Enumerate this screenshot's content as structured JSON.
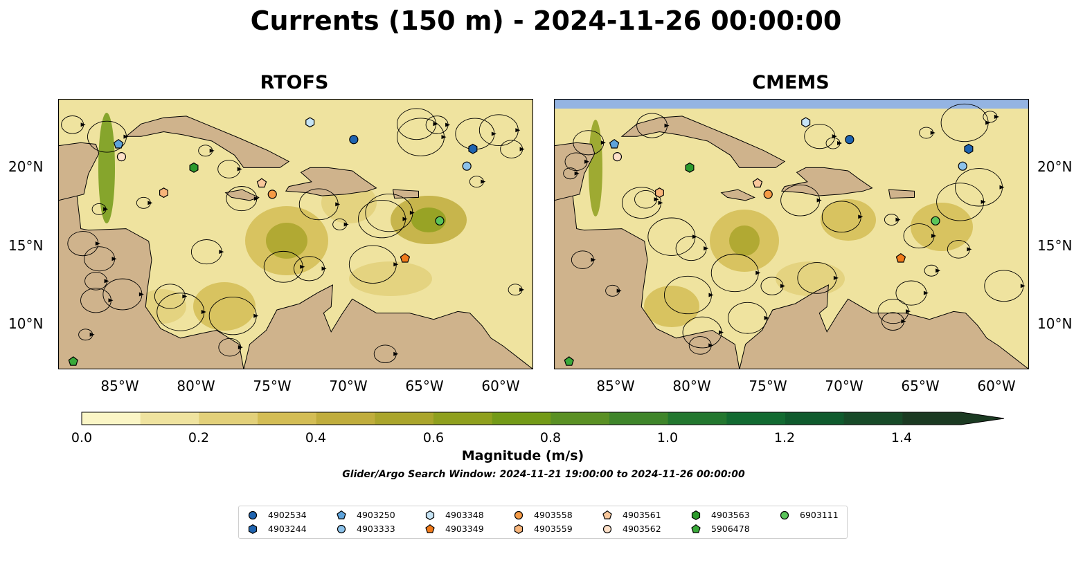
{
  "title": "Currents (150 m) - 2024-11-26 00:00:00",
  "panels": [
    {
      "name": "RTOFS"
    },
    {
      "name": "CMEMS"
    }
  ],
  "lat_labels": [
    "20°N",
    "15°N",
    "10°N"
  ],
  "lon_labels": [
    "85°W",
    "80°W",
    "75°W",
    "70°W",
    "65°W",
    "60°W"
  ],
  "map_extent": {
    "lon": [
      -89.5,
      -58.0
    ],
    "lat": [
      7.0,
      24.3
    ]
  },
  "colorbar": {
    "label": "Magnitude (m/s)",
    "ticks": [
      "0.0",
      "0.2",
      "0.4",
      "0.6",
      "0.8",
      "1.0",
      "1.2",
      "1.4"
    ],
    "range": [
      0.0,
      1.5
    ],
    "extend": "max",
    "colors": [
      "#fbf6c6",
      "#efe39f",
      "#e2d07a",
      "#d3bd55",
      "#c0ad3d",
      "#aaa52c",
      "#8fa01e",
      "#739a17",
      "#5a9024",
      "#3f852a",
      "#23772f",
      "#126a31",
      "#0f5a2d",
      "#174a28",
      "#1b3a22"
    ]
  },
  "search_window": "Glider/Argo Search Window: 2024-11-21 19:00:00 to 2024-11-26 00:00:00",
  "colors": {
    "ocean": "#94b4e2",
    "land": "#cfb38c",
    "background": "#ffffff"
  },
  "legend": [
    {
      "id": "4902534",
      "marker": "circle",
      "color": "#1f64b0"
    },
    {
      "id": "4903244",
      "marker": "hexagon",
      "color": "#1f64b0"
    },
    {
      "id": "4903250",
      "marker": "pentagon",
      "color": "#5ea3db"
    },
    {
      "id": "4903333",
      "marker": "circle",
      "color": "#8cc2ea"
    },
    {
      "id": "4903348",
      "marker": "hexagon",
      "color": "#c6e4f5"
    },
    {
      "id": "4903349",
      "marker": "pentagon",
      "color": "#f07a1a"
    },
    {
      "id": "4903558",
      "marker": "circle",
      "color": "#f59a45"
    },
    {
      "id": "4903559",
      "marker": "hexagon",
      "color": "#f8b57a"
    },
    {
      "id": "4903561",
      "marker": "pentagon",
      "color": "#f9c79b"
    },
    {
      "id": "4903562",
      "marker": "circle",
      "color": "#fde0c8"
    },
    {
      "id": "4903563",
      "marker": "hexagon",
      "color": "#2c9a2c"
    },
    {
      "id": "5906478",
      "marker": "pentagon",
      "color": "#3aaa3a"
    },
    {
      "id": "6903111",
      "marker": "circle",
      "color": "#5ac45a"
    }
  ],
  "floats": [
    {
      "id": "4902534",
      "lon": -69.9,
      "lat": 21.7
    },
    {
      "id": "4903244",
      "lon": -62.0,
      "lat": 21.1
    },
    {
      "id": "4903250",
      "lon": -85.5,
      "lat": 21.4
    },
    {
      "id": "4903333",
      "lon": -62.4,
      "lat": 20.0
    },
    {
      "id": "4903348",
      "lon": -72.8,
      "lat": 22.8
    },
    {
      "id": "4903349",
      "lon": -66.5,
      "lat": 14.1
    },
    {
      "id": "4903558",
      "lon": -75.3,
      "lat": 18.2
    },
    {
      "id": "4903559",
      "lon": -82.5,
      "lat": 18.3
    },
    {
      "id": "4903561",
      "lon": -76.0,
      "lat": 18.9
    },
    {
      "id": "4903562",
      "lon": -85.3,
      "lat": 20.6
    },
    {
      "id": "4903563",
      "lon": -80.5,
      "lat": 19.9
    },
    {
      "id": "5906478",
      "lon": -88.5,
      "lat": 7.5
    },
    {
      "id": "6903111",
      "lon": -64.2,
      "lat": 16.5
    }
  ]
}
